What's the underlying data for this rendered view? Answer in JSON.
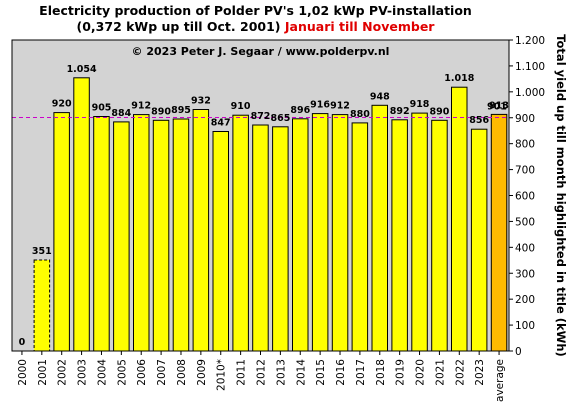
{
  "header": {
    "title_line1": "Electricity production  of Polder PV's 1,02 kWp PV-installation",
    "title_line2_black": "(0,372 kWp up till Oct. 2001)",
    "title_line2_red": "Januari till November"
  },
  "colors": {
    "plot_bg": "#d3d3d3",
    "bar_fill": "#ffff00",
    "average_fill": "#ffbb00",
    "reference_line": "#cc00cc",
    "average_label": "#ff0000",
    "ghost_label": "#808080"
  },
  "chart_data": {
    "type": "bar",
    "annotation": "© 2023 Peter J. Segaar / www.polderpv.nl",
    "ylabel": "Total yield up till month highlighted in title (kWh)",
    "y_side": "right",
    "ylim": [
      0,
      1200
    ],
    "yticks": [
      0,
      100,
      200,
      300,
      400,
      500,
      600,
      700,
      800,
      900,
      1000,
      1100,
      1200
    ],
    "ytick_labels": [
      "0",
      "100",
      "200",
      "300",
      "400",
      "500",
      "600",
      "700",
      "800",
      "900",
      "1.000",
      "1.100",
      "1.200"
    ],
    "grid": false,
    "categories": [
      "2000",
      "2001",
      "2002",
      "2003",
      "2004",
      "2005",
      "2006",
      "2007",
      "2008",
      "2009",
      "2010*",
      "2011",
      "2012",
      "2013",
      "2014",
      "2015",
      "2016",
      "2017",
      "2018",
      "2019",
      "2020",
      "2021",
      "2022",
      "2023",
      "average"
    ],
    "values": [
      0,
      351,
      920,
      1054,
      905,
      884,
      912,
      890,
      895,
      932,
      847,
      910,
      872,
      865,
      896,
      916,
      912,
      880,
      948,
      892,
      918,
      890,
      1018,
      856,
      913
    ],
    "value_labels": [
      "0",
      "351",
      "920",
      "1.054",
      "905",
      "884",
      "912",
      "890",
      "895",
      "932",
      "847",
      "910",
      "872",
      "865",
      "896",
      "916",
      "912",
      "880",
      "948",
      "892",
      "918",
      "890",
      "1.018",
      "856",
      "913"
    ],
    "bar_styles": [
      "ghost",
      "ghost",
      "normal",
      "normal",
      "normal",
      "normal",
      "normal",
      "normal",
      "normal",
      "normal",
      "normal",
      "normal",
      "normal",
      "normal",
      "normal",
      "normal",
      "normal",
      "normal",
      "normal",
      "normal",
      "normal",
      "normal",
      "normal",
      "normal",
      "average"
    ],
    "reference_line": {
      "value": 901,
      "label": "901",
      "style": "dashed"
    }
  }
}
